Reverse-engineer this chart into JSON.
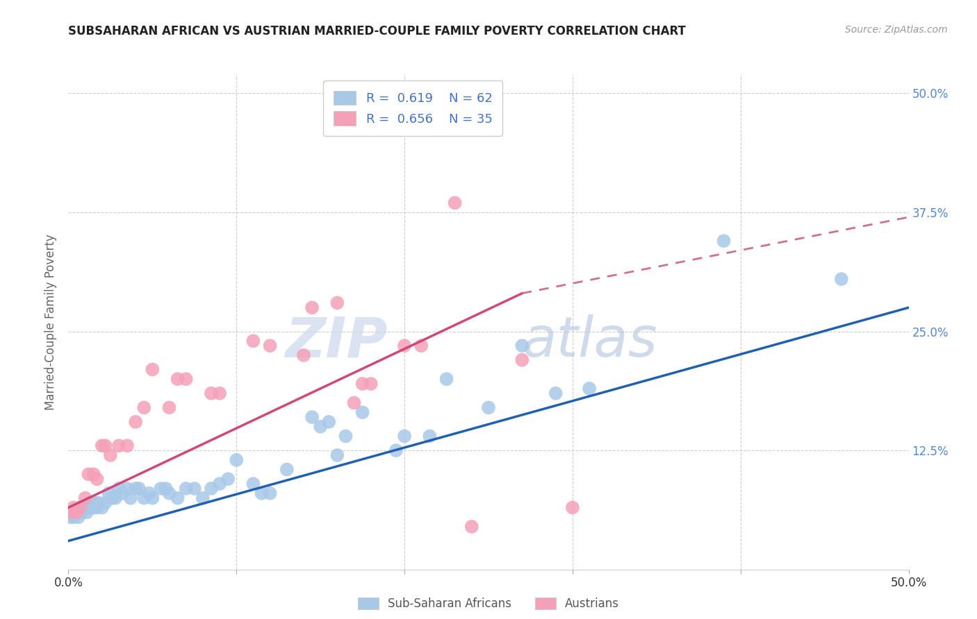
{
  "title": "SUBSAHARAN AFRICAN VS AUSTRIAN MARRIED-COUPLE FAMILY POVERTY CORRELATION CHART",
  "source": "Source: ZipAtlas.com",
  "ylabel": "Married-Couple Family Poverty",
  "legend_label1": "Sub-Saharan Africans",
  "legend_label2": "Austrians",
  "R1": "0.619",
  "N1": "62",
  "R2": "0.656",
  "N2": "35",
  "color_blue": "#a8c8e8",
  "color_pink": "#f4a0b8",
  "line_blue": "#2060b0",
  "line_pink": "#d04878",
  "line_pink_dashed": "#d0708c",
  "xlim": [
    0.0,
    0.5
  ],
  "ylim": [
    0.0,
    0.52
  ],
  "ytick_vals": [
    0.0,
    0.125,
    0.25,
    0.375,
    0.5
  ],
  "ytick_labels": [
    "",
    "12.5%",
    "25.0%",
    "37.5%",
    "50.0%"
  ],
  "xtick_vals": [
    0.0,
    0.1,
    0.2,
    0.3,
    0.4,
    0.5
  ],
  "xtick_labels": [
    "0.0%",
    "",
    "",
    "",
    "",
    "50.0%"
  ],
  "blue_points": [
    [
      0.001,
      0.055
    ],
    [
      0.002,
      0.06
    ],
    [
      0.003,
      0.055
    ],
    [
      0.004,
      0.06
    ],
    [
      0.005,
      0.06
    ],
    [
      0.006,
      0.055
    ],
    [
      0.007,
      0.065
    ],
    [
      0.008,
      0.06
    ],
    [
      0.009,
      0.065
    ],
    [
      0.01,
      0.065
    ],
    [
      0.011,
      0.06
    ],
    [
      0.012,
      0.065
    ],
    [
      0.013,
      0.07
    ],
    [
      0.015,
      0.065
    ],
    [
      0.016,
      0.07
    ],
    [
      0.017,
      0.065
    ],
    [
      0.018,
      0.07
    ],
    [
      0.02,
      0.065
    ],
    [
      0.022,
      0.07
    ],
    [
      0.024,
      0.08
    ],
    [
      0.026,
      0.075
    ],
    [
      0.028,
      0.075
    ],
    [
      0.03,
      0.085
    ],
    [
      0.032,
      0.08
    ],
    [
      0.035,
      0.085
    ],
    [
      0.037,
      0.075
    ],
    [
      0.04,
      0.085
    ],
    [
      0.042,
      0.085
    ],
    [
      0.045,
      0.075
    ],
    [
      0.048,
      0.08
    ],
    [
      0.05,
      0.075
    ],
    [
      0.055,
      0.085
    ],
    [
      0.058,
      0.085
    ],
    [
      0.06,
      0.08
    ],
    [
      0.065,
      0.075
    ],
    [
      0.07,
      0.085
    ],
    [
      0.075,
      0.085
    ],
    [
      0.08,
      0.075
    ],
    [
      0.085,
      0.085
    ],
    [
      0.09,
      0.09
    ],
    [
      0.095,
      0.095
    ],
    [
      0.1,
      0.115
    ],
    [
      0.11,
      0.09
    ],
    [
      0.115,
      0.08
    ],
    [
      0.12,
      0.08
    ],
    [
      0.13,
      0.105
    ],
    [
      0.145,
      0.16
    ],
    [
      0.15,
      0.15
    ],
    [
      0.155,
      0.155
    ],
    [
      0.16,
      0.12
    ],
    [
      0.165,
      0.14
    ],
    [
      0.175,
      0.165
    ],
    [
      0.195,
      0.125
    ],
    [
      0.2,
      0.14
    ],
    [
      0.215,
      0.14
    ],
    [
      0.225,
      0.2
    ],
    [
      0.25,
      0.17
    ],
    [
      0.27,
      0.235
    ],
    [
      0.29,
      0.185
    ],
    [
      0.31,
      0.19
    ],
    [
      0.39,
      0.345
    ],
    [
      0.46,
      0.305
    ]
  ],
  "pink_points": [
    [
      0.001,
      0.06
    ],
    [
      0.003,
      0.065
    ],
    [
      0.005,
      0.06
    ],
    [
      0.007,
      0.065
    ],
    [
      0.01,
      0.075
    ],
    [
      0.012,
      0.1
    ],
    [
      0.015,
      0.1
    ],
    [
      0.017,
      0.095
    ],
    [
      0.02,
      0.13
    ],
    [
      0.022,
      0.13
    ],
    [
      0.025,
      0.12
    ],
    [
      0.03,
      0.13
    ],
    [
      0.035,
      0.13
    ],
    [
      0.04,
      0.155
    ],
    [
      0.045,
      0.17
    ],
    [
      0.05,
      0.21
    ],
    [
      0.06,
      0.17
    ],
    [
      0.065,
      0.2
    ],
    [
      0.07,
      0.2
    ],
    [
      0.085,
      0.185
    ],
    [
      0.09,
      0.185
    ],
    [
      0.11,
      0.24
    ],
    [
      0.12,
      0.235
    ],
    [
      0.14,
      0.225
    ],
    [
      0.145,
      0.275
    ],
    [
      0.16,
      0.28
    ],
    [
      0.17,
      0.175
    ],
    [
      0.175,
      0.195
    ],
    [
      0.18,
      0.195
    ],
    [
      0.2,
      0.235
    ],
    [
      0.21,
      0.235
    ],
    [
      0.23,
      0.385
    ],
    [
      0.24,
      0.045
    ],
    [
      0.27,
      0.22
    ],
    [
      0.3,
      0.065
    ]
  ],
  "blue_line": [
    [
      0.0,
      0.03
    ],
    [
      0.5,
      0.275
    ]
  ],
  "pink_line_solid": [
    [
      0.0,
      0.065
    ],
    [
      0.27,
      0.29
    ]
  ],
  "pink_line_dashed": [
    [
      0.27,
      0.29
    ],
    [
      0.5,
      0.37
    ]
  ]
}
